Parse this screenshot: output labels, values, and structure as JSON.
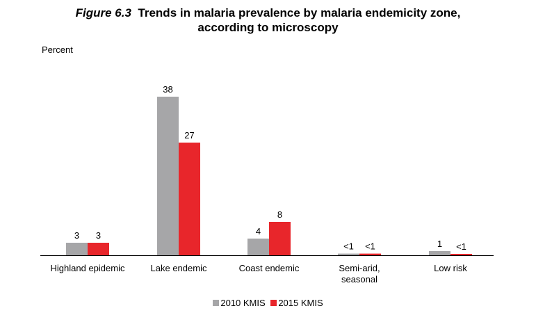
{
  "chart_data": {
    "type": "bar",
    "title_figure": "Figure 6.3",
    "title_line1": "Trends in malaria prevalence by malaria endemicity zone,",
    "title_line2": "according to microscopy",
    "ylabel": "Percent",
    "categories": [
      "Highland epidemic",
      "Lake endemic",
      "Coast endemic",
      "Semi-arid, seasonal",
      "Low risk"
    ],
    "series": [
      {
        "name": "2010 KMIS",
        "color": "#a6a6a8",
        "values": [
          3,
          38,
          4,
          0.4,
          1
        ],
        "labels": [
          "3",
          "38",
          "4",
          "<1",
          "1"
        ]
      },
      {
        "name": "2015 KMIS",
        "color": "#e8262b",
        "values": [
          3,
          27,
          8,
          0.4,
          0.2
        ],
        "labels": [
          "3",
          "27",
          "8",
          "<1",
          "<1"
        ]
      }
    ],
    "ylim": [
      0,
      40
    ],
    "grid": false,
    "legend_position": "bottom"
  }
}
